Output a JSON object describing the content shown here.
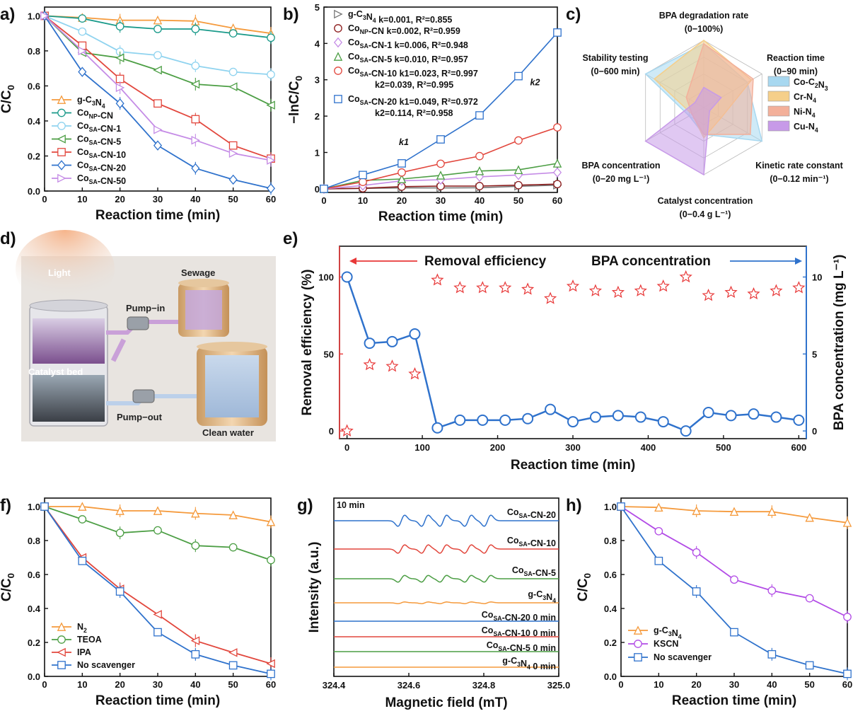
{
  "panels": {
    "a": "a)",
    "b": "b)",
    "c": "c)",
    "d": "d)",
    "e": "e)",
    "f": "f)",
    "g": "g)",
    "h": "h)"
  },
  "colors": {
    "orange": "#f59a3c",
    "teal": "#1a9a8a",
    "lightblue": "#8fd3ef",
    "green": "#4c9e44",
    "red": "#e2473d",
    "blue": "#2f72cc",
    "violet": "#c58ce6",
    "darkred": "#8b1a1a",
    "gray": "#777777",
    "magenta": "#b24be6",
    "redstar": "#e83838"
  },
  "chart_data": [
    {
      "id": "a",
      "type": "line",
      "xlabel": "Reaction time (min)",
      "ylabel": "C/C0",
      "xlim": [
        0,
        60
      ],
      "ylim": [
        0,
        1.05
      ],
      "xticks": [
        "0",
        "10",
        "20",
        "30",
        "40",
        "50",
        "60"
      ],
      "yticks": [
        "0.0",
        "0.2",
        "0.4",
        "0.6",
        "0.8",
        "1.0"
      ],
      "x": [
        0,
        10,
        20,
        30,
        40,
        50,
        60
      ],
      "legend": "bottom-left",
      "series": [
        {
          "name": "g-C3N4",
          "color": "orange",
          "marker": "tri-up",
          "values": [
            1.0,
            0.99,
            0.975,
            0.975,
            0.97,
            0.93,
            0.9
          ]
        },
        {
          "name": "CoNP-CN",
          "color": "teal",
          "marker": "circle",
          "values": [
            1.0,
            0.985,
            0.94,
            0.925,
            0.925,
            0.9,
            0.875
          ]
        },
        {
          "name": "CoSA-CN-1",
          "color": "lightblue",
          "marker": "circle",
          "values": [
            1.0,
            0.91,
            0.795,
            0.775,
            0.715,
            0.68,
            0.665
          ]
        },
        {
          "name": "CoSA-CN-5",
          "color": "green",
          "marker": "tri-left",
          "values": [
            1.0,
            0.79,
            0.76,
            0.69,
            0.61,
            0.595,
            0.49
          ]
        },
        {
          "name": "CoSA-CN-10",
          "color": "red",
          "marker": "square",
          "values": [
            1.0,
            0.83,
            0.64,
            0.5,
            0.41,
            0.26,
            0.185
          ]
        },
        {
          "name": "CoSA-CN-20",
          "color": "blue",
          "marker": "diamond",
          "values": [
            1.0,
            0.68,
            0.5,
            0.26,
            0.13,
            0.065,
            0.015
          ]
        },
        {
          "name": "CoSA-CN-50",
          "color": "violet",
          "marker": "tri-right",
          "values": [
            1.0,
            0.8,
            0.59,
            0.35,
            0.29,
            0.215,
            0.175
          ]
        }
      ]
    },
    {
      "id": "b",
      "type": "line",
      "xlabel": "Reaction time (min)",
      "ylabel": "−lnC/C0",
      "xlim": [
        0,
        60
      ],
      "ylim": [
        -0.1,
        5
      ],
      "xticks": [
        "0",
        "10",
        "20",
        "30",
        "40",
        "50",
        "60"
      ],
      "yticks": [
        "0",
        "1",
        "2",
        "3",
        "4",
        "5"
      ],
      "x": [
        0,
        10,
        20,
        30,
        40,
        50,
        60
      ],
      "legend": "top-left",
      "annotations": [
        "k1",
        "k2"
      ],
      "series": [
        {
          "name": "g-C3N4",
          "color": "gray",
          "marker": "tri-right",
          "legend_text": "k=0.001, R²=0.855",
          "values": [
            0,
            0.01,
            0.025,
            0.025,
            0.03,
            0.07,
            0.1
          ]
        },
        {
          "name": "CoNP-CN",
          "color": "darkred",
          "marker": "circle",
          "legend_text": "k=0.002, R²=0.959",
          "values": [
            0,
            0.015,
            0.06,
            0.075,
            0.075,
            0.1,
            0.13
          ]
        },
        {
          "name": "CoSA-CN-1",
          "color": "violet",
          "marker": "diamond",
          "legend_text": "k=0.006, R²=0.948",
          "values": [
            0,
            0.09,
            0.22,
            0.25,
            0.33,
            0.38,
            0.45
          ]
        },
        {
          "name": "CoSA-CN-5",
          "color": "green",
          "marker": "tri-up",
          "legend_text": "k=0.010, R²=0.957",
          "values": [
            0,
            0.23,
            0.27,
            0.37,
            0.49,
            0.52,
            0.7
          ]
        },
        {
          "name": "CoSA-CN-10",
          "color": "red",
          "marker": "circle",
          "legend_text": "k1=0.023, R²=0.997",
          "legend_text2": "k2=0.039, R²=0.995",
          "values": [
            0,
            0.19,
            0.45,
            0.69,
            0.9,
            1.33,
            1.69
          ]
        },
        {
          "name": "CoSA-CN-20",
          "color": "blue",
          "marker": "square",
          "legend_text": "k1=0.049, R²=0.972",
          "legend_text2": "k2=0.114, R²=0.958",
          "values": [
            0,
            0.38,
            0.7,
            1.36,
            2.02,
            3.1,
            4.3
          ]
        }
      ]
    },
    {
      "id": "c",
      "type": "radar",
      "axes": [
        {
          "name": "BPA degradation rate",
          "range": "(0−100%)"
        },
        {
          "name": "Reaction time",
          "range": "(0−90 min)"
        },
        {
          "name": "Kinetic rate constant",
          "range": "(0−0.12 min⁻¹)"
        },
        {
          "name": "Catalyst concentration",
          "range": "(0−0.4 g L⁻¹)"
        },
        {
          "name": "BPA concentration",
          "range": "(0−20 mg L⁻¹)"
        },
        {
          "name": "Stability testing",
          "range": "(0−600 min)"
        }
      ],
      "series": [
        {
          "name": "Co-C2N3",
          "color": "#a8d8f0",
          "values": [
            0.95,
            0.75,
            1.0,
            0.4,
            0.25,
            1.0
          ]
        },
        {
          "name": "Cr-N4",
          "color": "#f5cf8a",
          "values": [
            1.0,
            0.82,
            0.3,
            0.45,
            0.2,
            0.85
          ]
        },
        {
          "name": "Ni-N4",
          "color": "#f3b09a",
          "values": [
            0.95,
            0.85,
            0.8,
            0.4,
            0.2,
            0.3
          ]
        },
        {
          "name": "Cu-N4",
          "color": "#c79ae8",
          "values": [
            0.3,
            0.3,
            0.1,
            1.0,
            1.0,
            0.15
          ]
        }
      ]
    },
    {
      "id": "e",
      "type": "scatter",
      "xlabel": "Reaction time (min)",
      "ylabel_left": "Removal efficiency (%)",
      "ylabel_right": "BPA concentration (mg L⁻¹)",
      "xlim": [
        -10,
        610
      ],
      "ylim_left": [
        -5,
        120
      ],
      "ylim_right": [
        -0.5,
        12
      ],
      "xticks": [
        "0",
        "100",
        "200",
        "300",
        "400",
        "500",
        "600"
      ],
      "yticks_left": [
        "0",
        "50",
        "100"
      ],
      "yticks_right": [
        "0",
        "5",
        "10"
      ],
      "annotations": [
        "Removal efficiency",
        "BPA concentration"
      ],
      "x": [
        0,
        30,
        60,
        90,
        120,
        150,
        180,
        210,
        240,
        270,
        300,
        330,
        360,
        390,
        420,
        450,
        480,
        510,
        540,
        570,
        600
      ],
      "series": [
        {
          "name": "Removal efficiency",
          "axis": "left",
          "color": "redstar",
          "marker": "star",
          "values": [
            0,
            43,
            42,
            37,
            98,
            93,
            93,
            93,
            92,
            86,
            94,
            91,
            90,
            91,
            94,
            100,
            88,
            90,
            89,
            91,
            93
          ]
        },
        {
          "name": "BPA concentration",
          "axis": "right",
          "color": "blue",
          "marker": "circle-open",
          "values": [
            10,
            5.7,
            5.8,
            6.3,
            0.2,
            0.7,
            0.7,
            0.7,
            0.8,
            1.4,
            0.6,
            0.9,
            1.0,
            0.9,
            0.6,
            0.0,
            1.2,
            1.0,
            1.1,
            0.9,
            0.7
          ]
        }
      ]
    },
    {
      "id": "f",
      "type": "line",
      "xlabel": "Reaction time (min)",
      "ylabel": "C/C0",
      "xlim": [
        0,
        60
      ],
      "ylim": [
        0,
        1.05
      ],
      "xticks": [
        "0",
        "10",
        "20",
        "30",
        "40",
        "50",
        "60"
      ],
      "yticks": [
        "0.0",
        "0.2",
        "0.4",
        "0.6",
        "0.8",
        "1.0"
      ],
      "x": [
        0,
        10,
        20,
        30,
        40,
        50,
        60
      ],
      "legend": "bottom-left",
      "series": [
        {
          "name": "N2",
          "color": "orange",
          "marker": "tri-up",
          "values": [
            1.0,
            1.0,
            0.975,
            0.975,
            0.96,
            0.95,
            0.91
          ]
        },
        {
          "name": "TEOA",
          "color": "green",
          "marker": "circle",
          "values": [
            1.0,
            0.925,
            0.845,
            0.86,
            0.77,
            0.76,
            0.685
          ]
        },
        {
          "name": "IPA",
          "color": "red",
          "marker": "tri-left",
          "values": [
            1.0,
            0.7,
            0.515,
            0.365,
            0.21,
            0.14,
            0.075
          ]
        },
        {
          "name": "No scavenger",
          "color": "blue",
          "marker": "square",
          "values": [
            1.0,
            0.68,
            0.5,
            0.26,
            0.13,
            0.065,
            0.015
          ]
        }
      ]
    },
    {
      "id": "g",
      "type": "line",
      "xlabel": "Magnetic field (mT)",
      "ylabel": "Intensity (a.u.)",
      "xlim": [
        324.4,
        325.0
      ],
      "xticks": [
        "324.4",
        "324.6",
        "324.8",
        "325.0"
      ],
      "annotations": [
        "10 min"
      ],
      "series": [
        {
          "name": "CoSA-CN-20",
          "color": "blue",
          "amplitude": 1.0
        },
        {
          "name": "CoSA-CN-10",
          "color": "red",
          "amplitude": 0.75
        },
        {
          "name": "CoSA-CN-5",
          "color": "green",
          "amplitude": 0.6
        },
        {
          "name": "g-C3N4",
          "color": "orange",
          "amplitude": 0.15
        },
        {
          "name": "CoSA-CN-20 0 min",
          "color": "blue",
          "amplitude": 0
        },
        {
          "name": "CoSA-CN-10 0 min",
          "color": "red",
          "amplitude": 0
        },
        {
          "name": "CoSA-CN-5 0 min",
          "color": "green",
          "amplitude": 0
        },
        {
          "name": "g-C3N4 0 min",
          "color": "orange",
          "amplitude": 0
        }
      ]
    },
    {
      "id": "h",
      "type": "line",
      "xlabel": "Reaction time (min)",
      "ylabel": "C/C0",
      "xlim": [
        0,
        60
      ],
      "ylim": [
        0,
        1.05
      ],
      "xticks": [
        "0",
        "10",
        "20",
        "30",
        "40",
        "50",
        "60"
      ],
      "yticks": [
        "0.0",
        "0.2",
        "0.4",
        "0.6",
        "0.8",
        "1.0"
      ],
      "x": [
        0,
        10,
        20,
        30,
        40,
        50,
        60
      ],
      "legend": "bottom-left",
      "series": [
        {
          "name": "g-C3N4",
          "color": "orange",
          "marker": "tri-up",
          "values": [
            1.0,
            0.995,
            0.975,
            0.97,
            0.97,
            0.935,
            0.905
          ]
        },
        {
          "name": "KSCN",
          "color": "magenta",
          "marker": "circle",
          "values": [
            1.0,
            0.855,
            0.73,
            0.57,
            0.505,
            0.46,
            0.35
          ]
        },
        {
          "name": "No scavenger",
          "color": "blue",
          "marker": "square",
          "values": [
            1.0,
            0.68,
            0.5,
            0.26,
            0.13,
            0.065,
            0.015
          ]
        }
      ]
    }
  ],
  "photo_d": {
    "labels": [
      "Light",
      "Sewage",
      "Pump−in",
      "Catalyst bed",
      "Pump−out",
      "Clean water"
    ]
  }
}
